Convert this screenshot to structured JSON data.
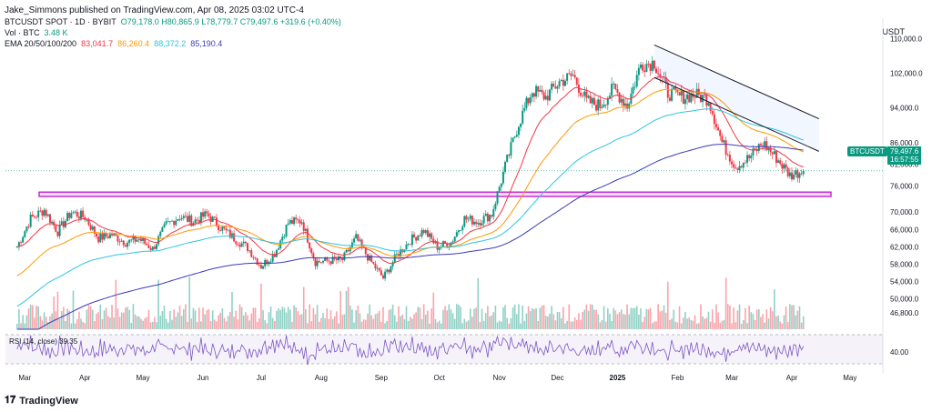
{
  "header": {
    "published": "Jake_Simmons published on TradingView.com, Apr 08, 2025 03:02 UTC-4",
    "symbol_line": "BTCUSDT SPOT · 1D · BYBIT",
    "ohlc": "O79,178.0  H80,865.9  L78,779.7  C79,497.6  +319.6 (+0.40%)",
    "vol_label": "Vol · BTC",
    "vol_value": "3.48 K",
    "ema_label": "EMA 20/50/100/200",
    "ema20": "83,041.7",
    "ema50": "86,260.4",
    "ema100": "88,372.2",
    "ema200": "85,190.4",
    "rsi_label": "RSI (14, close)",
    "rsi_value": "39.35"
  },
  "currency": "USDT",
  "price_tag": {
    "symbol": "BTCUSDT",
    "price": "79,497.6",
    "countdown": "16:57:55"
  },
  "footer": {
    "brand": "TradingView"
  },
  "chart_data": {
    "type": "candlestick",
    "title": "BTCUSDT SPOT · 1D · BYBIT",
    "y_ticks": [
      "110,000.0",
      "102,000.0",
      "94,000.0",
      "86,000.0",
      "81,000.0",
      "76,000.0",
      "70,000.0",
      "66,000.0",
      "62,000.0",
      "58,000.0",
      "54,000.0",
      "50,000.0",
      "46,800.0"
    ],
    "rsi_ticks": [
      "40.00"
    ],
    "x_ticks": [
      "Mar",
      "Apr",
      "May",
      "Jun",
      "Jul",
      "Aug",
      "Sep",
      "Oct",
      "Nov",
      "Dec",
      "2025",
      "Feb",
      "Mar",
      "Apr",
      "May"
    ],
    "ylim": [
      43000,
      113000
    ],
    "colors": {
      "up": "#089981",
      "down": "#f23645",
      "ema20": "#f23645",
      "ema50": "#ff9800",
      "ema100": "#2ec4e0",
      "ema200": "#3b3bb8",
      "support": "#c71fd1",
      "channel": "#131722",
      "rsi": "#7e57c2"
    },
    "support_zone": [
      73600,
      74600
    ],
    "channel": {
      "upper": [
        [
          "2025-01-20",
          108500
        ],
        [
          "2025-04-15",
          91500
        ]
      ],
      "lower": [
        [
          "2025-01-20",
          101000
        ],
        [
          "2025-04-15",
          84000
        ]
      ]
    },
    "closes_weekly": [
      [
        "2024-02-26",
        62000
      ],
      [
        "2024-03-04",
        68500
      ],
      [
        "2024-03-11",
        70500
      ],
      [
        "2024-03-18",
        65500
      ],
      [
        "2024-03-25",
        70000
      ],
      [
        "2024-04-01",
        68800
      ],
      [
        "2024-04-08",
        64000
      ],
      [
        "2024-04-15",
        64800
      ],
      [
        "2024-04-22",
        63000
      ],
      [
        "2024-04-29",
        63800
      ],
      [
        "2024-05-06",
        61500
      ],
      [
        "2024-05-13",
        67000
      ],
      [
        "2024-05-20",
        69000
      ],
      [
        "2024-05-27",
        67800
      ],
      [
        "2024-06-03",
        69500
      ],
      [
        "2024-06-10",
        66500
      ],
      [
        "2024-06-17",
        64000
      ],
      [
        "2024-06-24",
        61800
      ],
      [
        "2024-07-01",
        57500
      ],
      [
        "2024-07-08",
        60500
      ],
      [
        "2024-07-15",
        67500
      ],
      [
        "2024-07-22",
        68000
      ],
      [
        "2024-07-29",
        58500
      ],
      [
        "2024-08-05",
        58800
      ],
      [
        "2024-08-12",
        59000
      ],
      [
        "2024-08-19",
        64000
      ],
      [
        "2024-08-26",
        59000
      ],
      [
        "2024-09-02",
        54800
      ],
      [
        "2024-09-09",
        60000
      ],
      [
        "2024-09-16",
        63500
      ],
      [
        "2024-09-23",
        65800
      ],
      [
        "2024-09-30",
        62000
      ],
      [
        "2024-10-07",
        63000
      ],
      [
        "2024-10-14",
        68500
      ],
      [
        "2024-10-21",
        67800
      ],
      [
        "2024-10-28",
        69500
      ],
      [
        "2024-11-04",
        80500
      ],
      [
        "2024-11-11",
        90500
      ],
      [
        "2024-11-18",
        98000
      ],
      [
        "2024-11-25",
        96500
      ],
      [
        "2024-12-02",
        100000
      ],
      [
        "2024-12-09",
        101500
      ],
      [
        "2024-12-16",
        95500
      ],
      [
        "2024-12-23",
        94500
      ],
      [
        "2024-12-30",
        98500
      ],
      [
        "2025-01-06",
        94500
      ],
      [
        "2025-01-13",
        104000
      ],
      [
        "2025-01-20",
        104500
      ],
      [
        "2025-01-27",
        97500
      ],
      [
        "2025-02-03",
        96500
      ],
      [
        "2025-02-10",
        97000
      ],
      [
        "2025-02-17",
        96000
      ],
      [
        "2025-02-24",
        86000
      ],
      [
        "2025-03-03",
        80500
      ],
      [
        "2025-03-10",
        82500
      ],
      [
        "2025-03-17",
        86000
      ],
      [
        "2025-03-24",
        82500
      ],
      [
        "2025-03-31",
        78500
      ],
      [
        "2025-04-07",
        79500
      ]
    ]
  }
}
